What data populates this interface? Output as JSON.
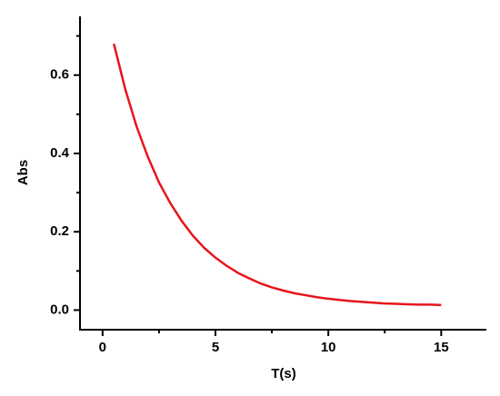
{
  "chart_data": {
    "type": "line",
    "xlabel": "T(s)",
    "ylabel": "Abs",
    "x": [
      0.5,
      1,
      1.5,
      2,
      2.5,
      3,
      3.5,
      4,
      4.5,
      5,
      5.5,
      6,
      6.5,
      7,
      7.5,
      8,
      8.5,
      9,
      9.5,
      10,
      10.5,
      11,
      11.5,
      12,
      12.5,
      13,
      13.5,
      14,
      14.5,
      15
    ],
    "series": [
      {
        "color": "#e8141b",
        "values": [
          0.68,
          0.565,
          0.47,
          0.392,
          0.326,
          0.273,
          0.228,
          0.19,
          0.159,
          0.134,
          0.113,
          0.095,
          0.081,
          0.068,
          0.058,
          0.05,
          0.043,
          0.038,
          0.033,
          0.029,
          0.026,
          0.023,
          0.021,
          0.019,
          0.017,
          0.016,
          0.015,
          0.014,
          0.014,
          0.013
        ]
      }
    ],
    "xlim": [
      -1,
      17
    ],
    "ylim": [
      -0.05,
      0.75
    ],
    "xticks": [
      0,
      5,
      10,
      15
    ],
    "yticks": [
      {
        "value": 0,
        "label": "0.0"
      },
      0.2,
      0.4,
      0.6
    ],
    "xminorticks": [
      2.5,
      7.5,
      12.5
    ],
    "yminorticks": [
      0.1,
      0.3,
      0.5,
      0.7
    ]
  }
}
